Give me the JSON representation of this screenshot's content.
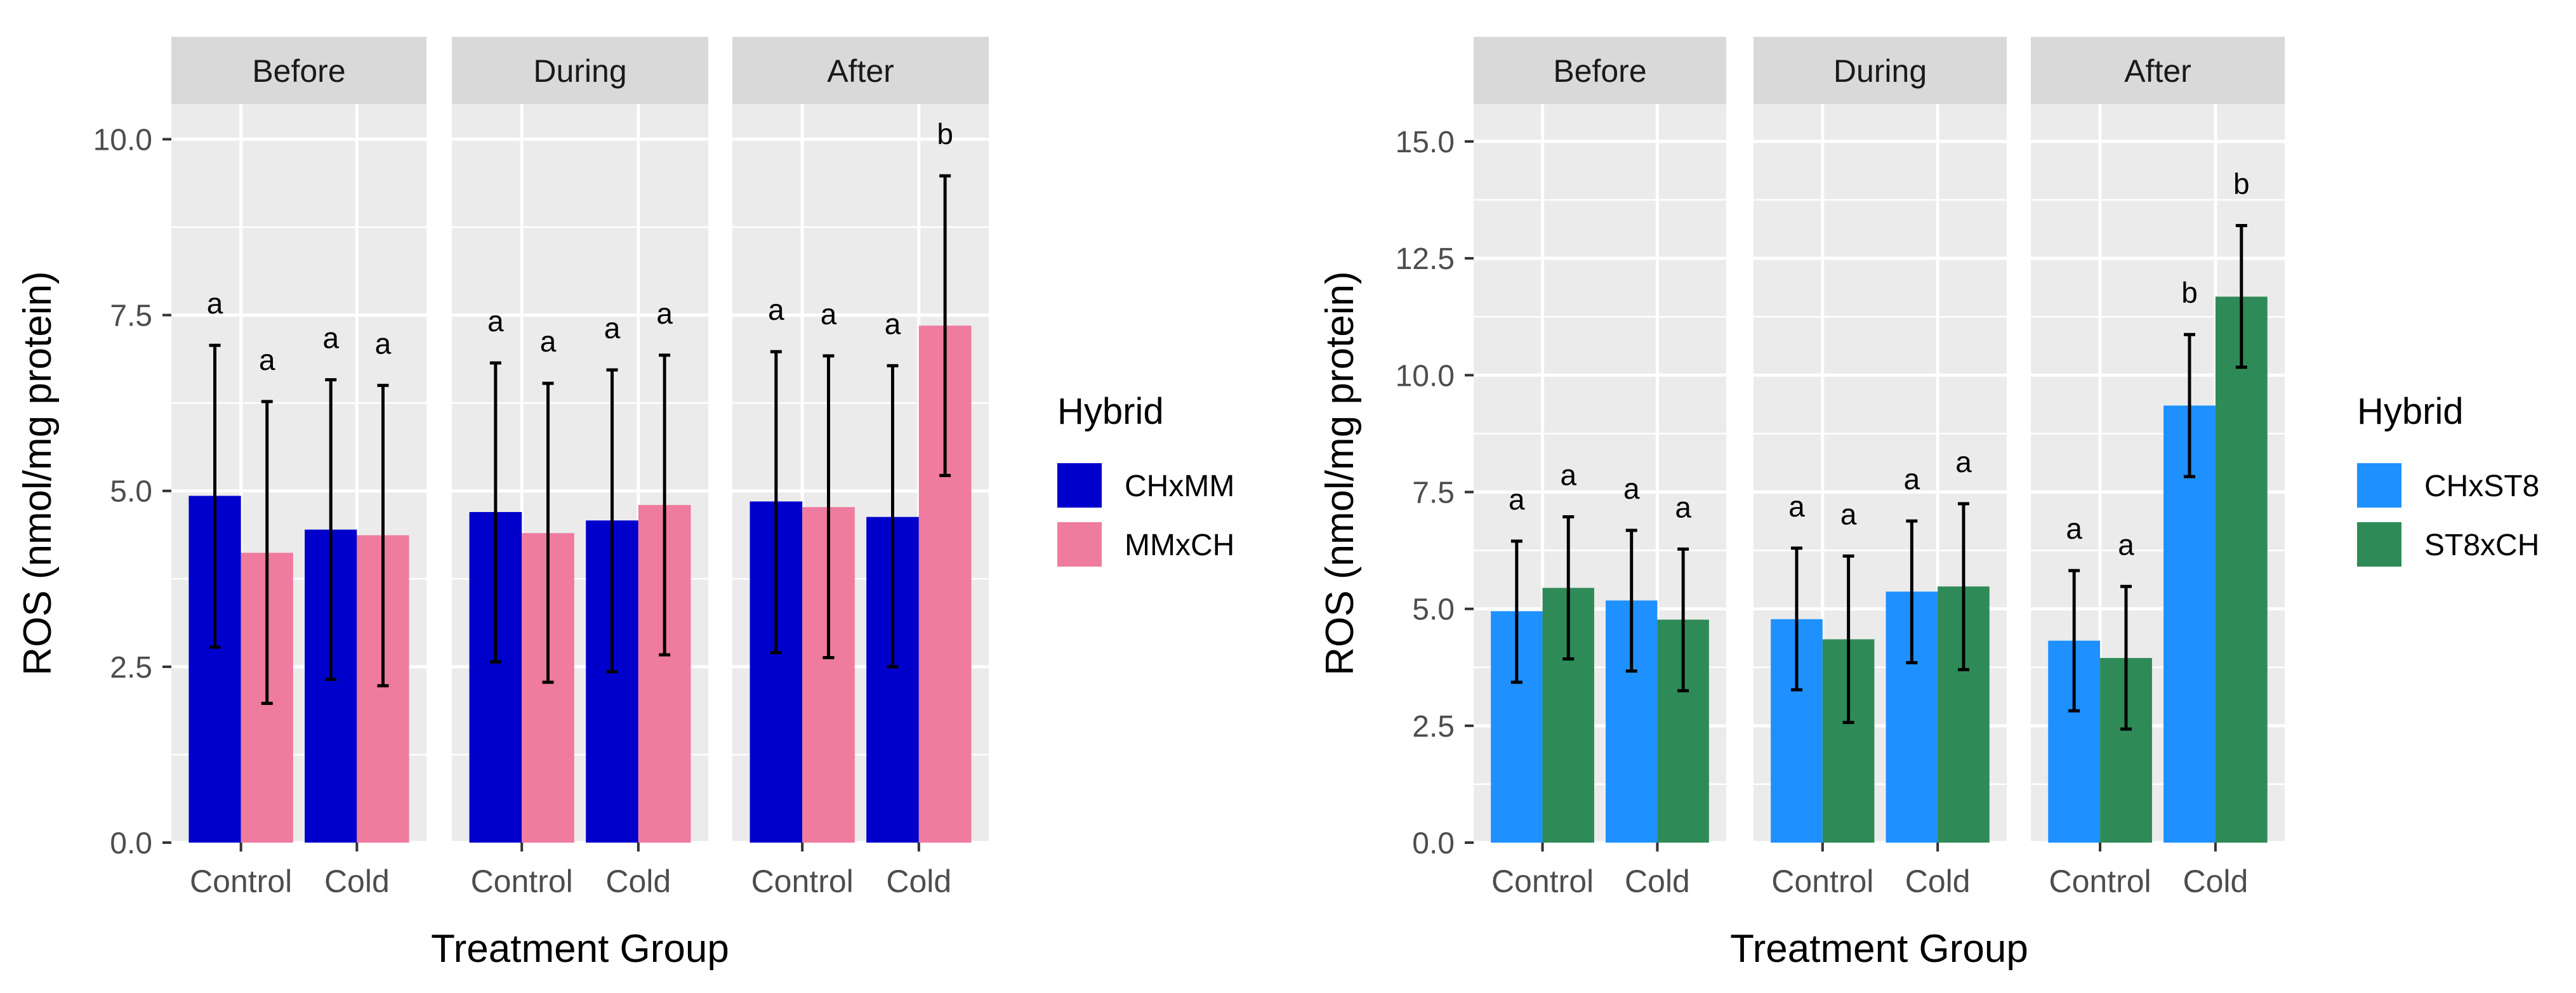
{
  "chart_data": [
    {
      "type": "bar",
      "facets": [
        "Before",
        "During",
        "After"
      ],
      "categories": [
        "Control",
        "Cold"
      ],
      "xlabel": "Treatment Group",
      "ylabel": "ROS (nmol/mg protein)",
      "ylim": [
        0,
        10.5
      ],
      "yticks": [
        0,
        2.5,
        5,
        7.5,
        10
      ],
      "ytick_labels": [
        "0.0",
        "2.5",
        "5.0",
        "7.5",
        "10.0"
      ],
      "legend": {
        "title": "Hybrid",
        "position": "right"
      },
      "series": [
        {
          "name": "CHxMM",
          "color": "#0000CD",
          "values": [
            [
              4.93,
              4.45
            ],
            [
              4.7,
              4.58
            ],
            [
              4.85,
              4.63
            ]
          ],
          "err_low": [
            [
              2.78,
              2.32
            ],
            [
              2.57,
              2.43
            ],
            [
              2.7,
              2.5
            ]
          ],
          "err_high": [
            [
              7.07,
              6.58
            ],
            [
              6.82,
              6.72
            ],
            [
              6.98,
              6.78
            ]
          ],
          "labels": [
            [
              "a",
              "a"
            ],
            [
              "a",
              "a"
            ],
            [
              "a",
              "a"
            ]
          ]
        },
        {
          "name": "MMxCH",
          "color": "#EF7B9F",
          "values": [
            [
              4.12,
              4.37
            ],
            [
              4.4,
              4.8
            ],
            [
              4.77,
              7.35
            ]
          ],
          "err_low": [
            [
              1.98,
              2.23
            ],
            [
              2.28,
              2.67
            ],
            [
              2.63,
              5.22
            ]
          ],
          "err_high": [
            [
              6.27,
              6.5
            ],
            [
              6.53,
              6.93
            ],
            [
              6.92,
              9.48
            ]
          ],
          "labels": [
            [
              "a",
              "a"
            ],
            [
              "a",
              "a"
            ],
            [
              "a",
              "b"
            ]
          ]
        }
      ]
    },
    {
      "type": "bar",
      "facets": [
        "Before",
        "During",
        "After"
      ],
      "categories": [
        "Control",
        "Cold"
      ],
      "xlabel": "Treatment Group",
      "ylabel": "ROS (nmol/mg protein)",
      "ylim": [
        0,
        15.8
      ],
      "yticks": [
        0,
        2.5,
        5,
        7.5,
        10,
        12.5,
        15
      ],
      "ytick_labels": [
        "0.0",
        "2.5",
        "5.0",
        "7.5",
        "10.0",
        "12.5",
        "15.0"
      ],
      "legend": {
        "title": "Hybrid",
        "position": "right"
      },
      "series": [
        {
          "name": "CHxST8",
          "color": "#1E90FF",
          "values": [
            [
              4.95,
              5.18
            ],
            [
              4.78,
              5.37
            ],
            [
              4.32,
              9.35
            ]
          ],
          "err_low": [
            [
              3.43,
              3.67
            ],
            [
              3.27,
              3.85
            ],
            [
              2.82,
              7.83
            ]
          ],
          "err_high": [
            [
              6.45,
              6.68
            ],
            [
              6.3,
              6.88
            ],
            [
              5.82,
              10.87
            ]
          ],
          "labels": [
            [
              "a",
              "a"
            ],
            [
              "a",
              "a"
            ],
            [
              "a",
              "b"
            ]
          ]
        },
        {
          "name": "ST8xCH",
          "color": "#2E8B57",
          "values": [
            [
              5.45,
              4.77
            ],
            [
              4.35,
              5.48
            ],
            [
              3.95,
              11.68
            ]
          ],
          "err_low": [
            [
              3.93,
              3.25
            ],
            [
              2.57,
              3.7
            ],
            [
              2.43,
              10.17
            ]
          ],
          "err_high": [
            [
              6.97,
              6.28
            ],
            [
              6.13,
              7.25
            ],
            [
              5.48,
              13.2
            ]
          ],
          "labels": [
            [
              "a",
              "a"
            ],
            [
              "a",
              "a"
            ],
            [
              "a",
              "b"
            ]
          ]
        }
      ]
    }
  ]
}
